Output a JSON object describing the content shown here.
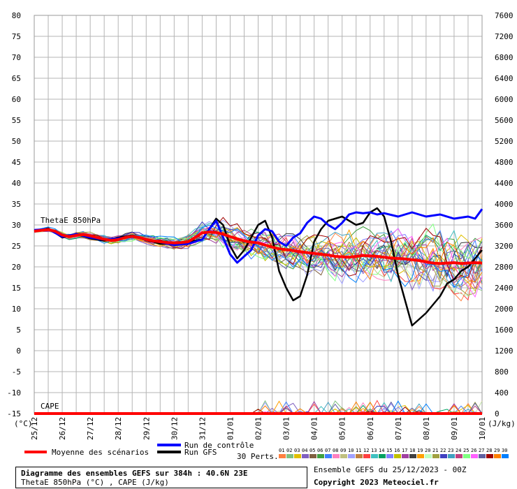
{
  "chart_data": {
    "type": "line",
    "title": "Diagramme des ensembles GEFS sur 384h : 40.6N 23E",
    "subtitle": "ThetaE 850hPa (°C) , CAPE (J/kg)",
    "run_info": "Ensemble GEFS du 25/12/2023 - 00Z",
    "copyright": "Copyright 2023 Meteociel.fr",
    "panel_labels": {
      "theta": "ThetaE 850hPa",
      "cape": "CAPE"
    },
    "x_tick_labels": [
      "25/12",
      "26/12",
      "27/12",
      "28/12",
      "29/12",
      "30/12",
      "31/12",
      "01/01",
      "02/01",
      "03/01",
      "04/01",
      "05/01",
      "06/01",
      "07/01",
      "08/01",
      "09/01",
      "10/01"
    ],
    "x_hours": [
      0,
      384
    ],
    "y_left": {
      "unit": "(°C)",
      "ticks": [
        80,
        75,
        70,
        65,
        60,
        55,
        50,
        45,
        40,
        35,
        30,
        25,
        20,
        15,
        10,
        5,
        0,
        -5,
        -10,
        -15
      ],
      "ylim": [
        -15,
        80
      ]
    },
    "y_right": {
      "unit": "(J/kg)",
      "ticks": [
        7600,
        7200,
        6800,
        6400,
        6000,
        5600,
        5200,
        4800,
        4400,
        4000,
        3600,
        3200,
        2800,
        2400,
        2000,
        1600,
        1200,
        800,
        400,
        0
      ],
      "ylim": [
        0,
        7600
      ]
    },
    "grid": true,
    "legend": {
      "mean": "Moyenne des scénarios",
      "control": "Run de contrôle",
      "gfs": "Run GFS",
      "perts_label": "30 Perts.",
      "pert_numbers": [
        "01",
        "02",
        "03",
        "04",
        "05",
        "06",
        "07",
        "08",
        "09",
        "10",
        "11",
        "12",
        "13",
        "14",
        "15",
        "16",
        "17",
        "18",
        "19",
        "20",
        "21",
        "22",
        "23",
        "24",
        "25",
        "26",
        "27",
        "28",
        "29",
        "30"
      ],
      "pert_colors": [
        "#ff8040",
        "#80c080",
        "#e0c000",
        "#8060c0",
        "#806040",
        "#40a040",
        "#4080ff",
        "#ff80c0",
        "#c0c080",
        "#a0a0ff",
        "#c08040",
        "#ff4040",
        "#40c0c0",
        "#00a060",
        "#8080ff",
        "#c0c000",
        "#a040a0",
        "#404040",
        "#ffa000",
        "#c0ffc0",
        "#a0a040",
        "#4040c0",
        "#40a0c0",
        "#c04080",
        "#80ff80",
        "#ff60ff",
        "#6060a0",
        "#a00000",
        "#ff8000",
        "#0080ff"
      ]
    },
    "colors": {
      "mean": "#ff0000",
      "control": "#0000ff",
      "gfs": "#000000",
      "grid": "#b4b4b4"
    },
    "series": [
      {
        "name": "Moyenne des scénarios",
        "kind": "mean",
        "x": [
          0,
          6,
          12,
          18,
          24,
          30,
          36,
          42,
          48,
          54,
          60,
          66,
          72,
          78,
          84,
          90,
          96,
          102,
          108,
          114,
          120,
          126,
          132,
          138,
          144,
          150,
          156,
          162,
          168,
          174,
          180,
          186,
          192,
          198,
          204,
          210,
          216,
          222,
          228,
          234,
          240,
          246,
          252,
          258,
          264,
          270,
          276,
          282,
          288,
          294,
          300,
          306,
          312,
          318,
          324,
          330,
          336,
          342,
          348,
          354,
          360,
          366,
          372,
          378,
          384
        ],
        "y": [
          28.5,
          28.7,
          28.9,
          28.5,
          27.6,
          27.2,
          27.5,
          27.7,
          27.4,
          27.0,
          26.6,
          26.3,
          26.5,
          27.0,
          27.3,
          27.0,
          26.6,
          26.2,
          26.0,
          25.8,
          25.7,
          25.8,
          26.0,
          27.0,
          28.1,
          28.3,
          28.2,
          27.8,
          27.2,
          26.7,
          26.2,
          25.9,
          25.7,
          25.2,
          24.7,
          24.3,
          24.1,
          23.9,
          23.6,
          23.4,
          23.2,
          23.0,
          22.8,
          22.5,
          22.4,
          22.3,
          22.5,
          22.7,
          22.6,
          22.5,
          22.3,
          22.1,
          22.0,
          21.9,
          21.7,
          21.5,
          21.2,
          20.9,
          20.8,
          20.9,
          21.0,
          20.8,
          20.9,
          21.0,
          20.9
        ]
      },
      {
        "name": "Run de contrôle",
        "kind": "control",
        "x": [
          0,
          12,
          24,
          36,
          48,
          60,
          72,
          84,
          96,
          108,
          120,
          132,
          144,
          150,
          156,
          162,
          168,
          174,
          180,
          186,
          192,
          198,
          204,
          210,
          216,
          222,
          228,
          234,
          240,
          246,
          252,
          258,
          264,
          270,
          276,
          282,
          288,
          294,
          300,
          312,
          324,
          336,
          348,
          360,
          372,
          378,
          384
        ],
        "y": [
          28.8,
          29.0,
          27.2,
          27.8,
          27.0,
          26.5,
          26.8,
          27.2,
          26.6,
          25.9,
          25.2,
          25.5,
          26.5,
          29.0,
          31.0,
          27.0,
          23.0,
          21.0,
          22.5,
          24.0,
          27.5,
          29.0,
          28.5,
          26.0,
          25.0,
          27.0,
          28.0,
          30.5,
          32.0,
          31.5,
          30.0,
          29.0,
          30.5,
          32.5,
          33.0,
          32.8,
          33.0,
          32.5,
          32.8,
          32.0,
          33.0,
          32.0,
          32.5,
          31.5,
          32.0,
          31.5,
          33.8
        ]
      },
      {
        "name": "Run GFS",
        "kind": "gfs",
        "x": [
          0,
          12,
          24,
          36,
          48,
          60,
          72,
          84,
          96,
          108,
          120,
          132,
          144,
          150,
          156,
          162,
          168,
          174,
          180,
          186,
          192,
          198,
          204,
          210,
          216,
          222,
          228,
          234,
          240,
          246,
          252,
          258,
          264,
          270,
          276,
          282,
          288,
          294,
          300,
          306,
          312,
          318,
          324,
          330,
          336,
          342,
          348,
          354,
          360,
          366,
          372,
          378,
          384
        ],
        "y": [
          28.5,
          29.2,
          27.0,
          27.8,
          26.8,
          26.2,
          27.0,
          27.5,
          26.5,
          25.5,
          25.5,
          26.0,
          26.5,
          29.0,
          31.5,
          30.0,
          25.0,
          22.0,
          24.0,
          27.0,
          30.0,
          31.0,
          27.0,
          19.0,
          15.0,
          12.0,
          13.0,
          18.0,
          26.0,
          29.0,
          31.0,
          31.5,
          32.0,
          31.0,
          30.0,
          30.5,
          33.0,
          34.0,
          32.0,
          26.0,
          18.0,
          12.0,
          6.0,
          7.5,
          9.0,
          11.0,
          13.0,
          16.0,
          17.0,
          19.0,
          20.0,
          22.0,
          24.0
        ]
      }
    ],
    "cape_series": [
      {
        "name": "Moyenne des scénarios",
        "kind": "mean",
        "x": [
          0,
          384
        ],
        "y": [
          0,
          0
        ]
      }
    ]
  }
}
